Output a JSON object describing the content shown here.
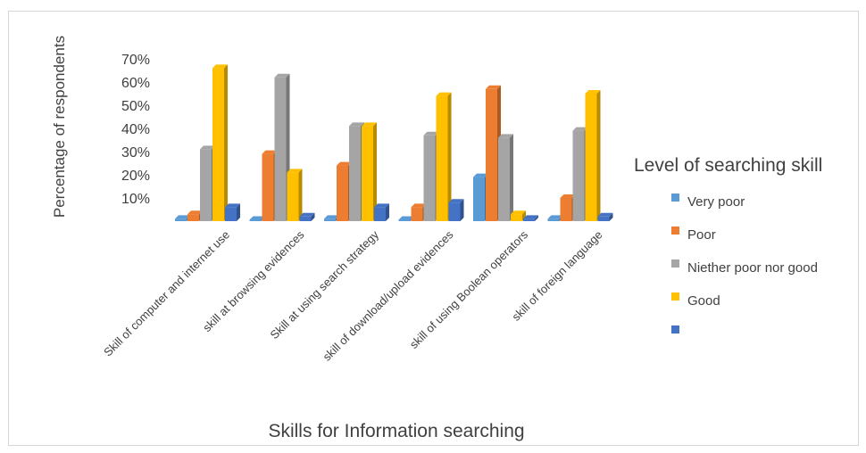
{
  "chart_data": {
    "type": "bar",
    "ylabel": "Percentage of respondents",
    "xlabel": "Skills for Information searching",
    "legend_title": "Level of searching skill",
    "legend_position": "right",
    "y_tick_labels": [
      "10%",
      "20%",
      "30%",
      "40%",
      "50%",
      "60%",
      "70%"
    ],
    "ylim": [
      0,
      70
    ],
    "categories": [
      "Skill of computer and internet use",
      "skill at browsing evidences",
      "Skill at using search strategy",
      "skill of download/upload evidences",
      "skill of using Boolean operators",
      "skill of foreign language"
    ],
    "series": [
      {
        "name": "Very poor",
        "color": "#5b9bd5",
        "values": [
          1,
          0,
          1,
          0,
          19,
          1
        ]
      },
      {
        "name": "Poor",
        "color": "#ed7d31",
        "values": [
          3,
          29,
          24,
          6,
          57,
          10
        ]
      },
      {
        "name": "Niether poor nor good",
        "color": "#a5a5a5",
        "values": [
          31,
          62,
          41,
          37,
          36,
          39
        ]
      },
      {
        "name": "Good",
        "color": "#ffc000",
        "values": [
          66,
          21,
          41,
          54,
          3,
          55
        ]
      },
      {
        "name": "",
        "color": "#4472c4",
        "values": [
          6,
          2,
          6,
          8,
          1,
          2
        ]
      }
    ],
    "grid": false
  }
}
